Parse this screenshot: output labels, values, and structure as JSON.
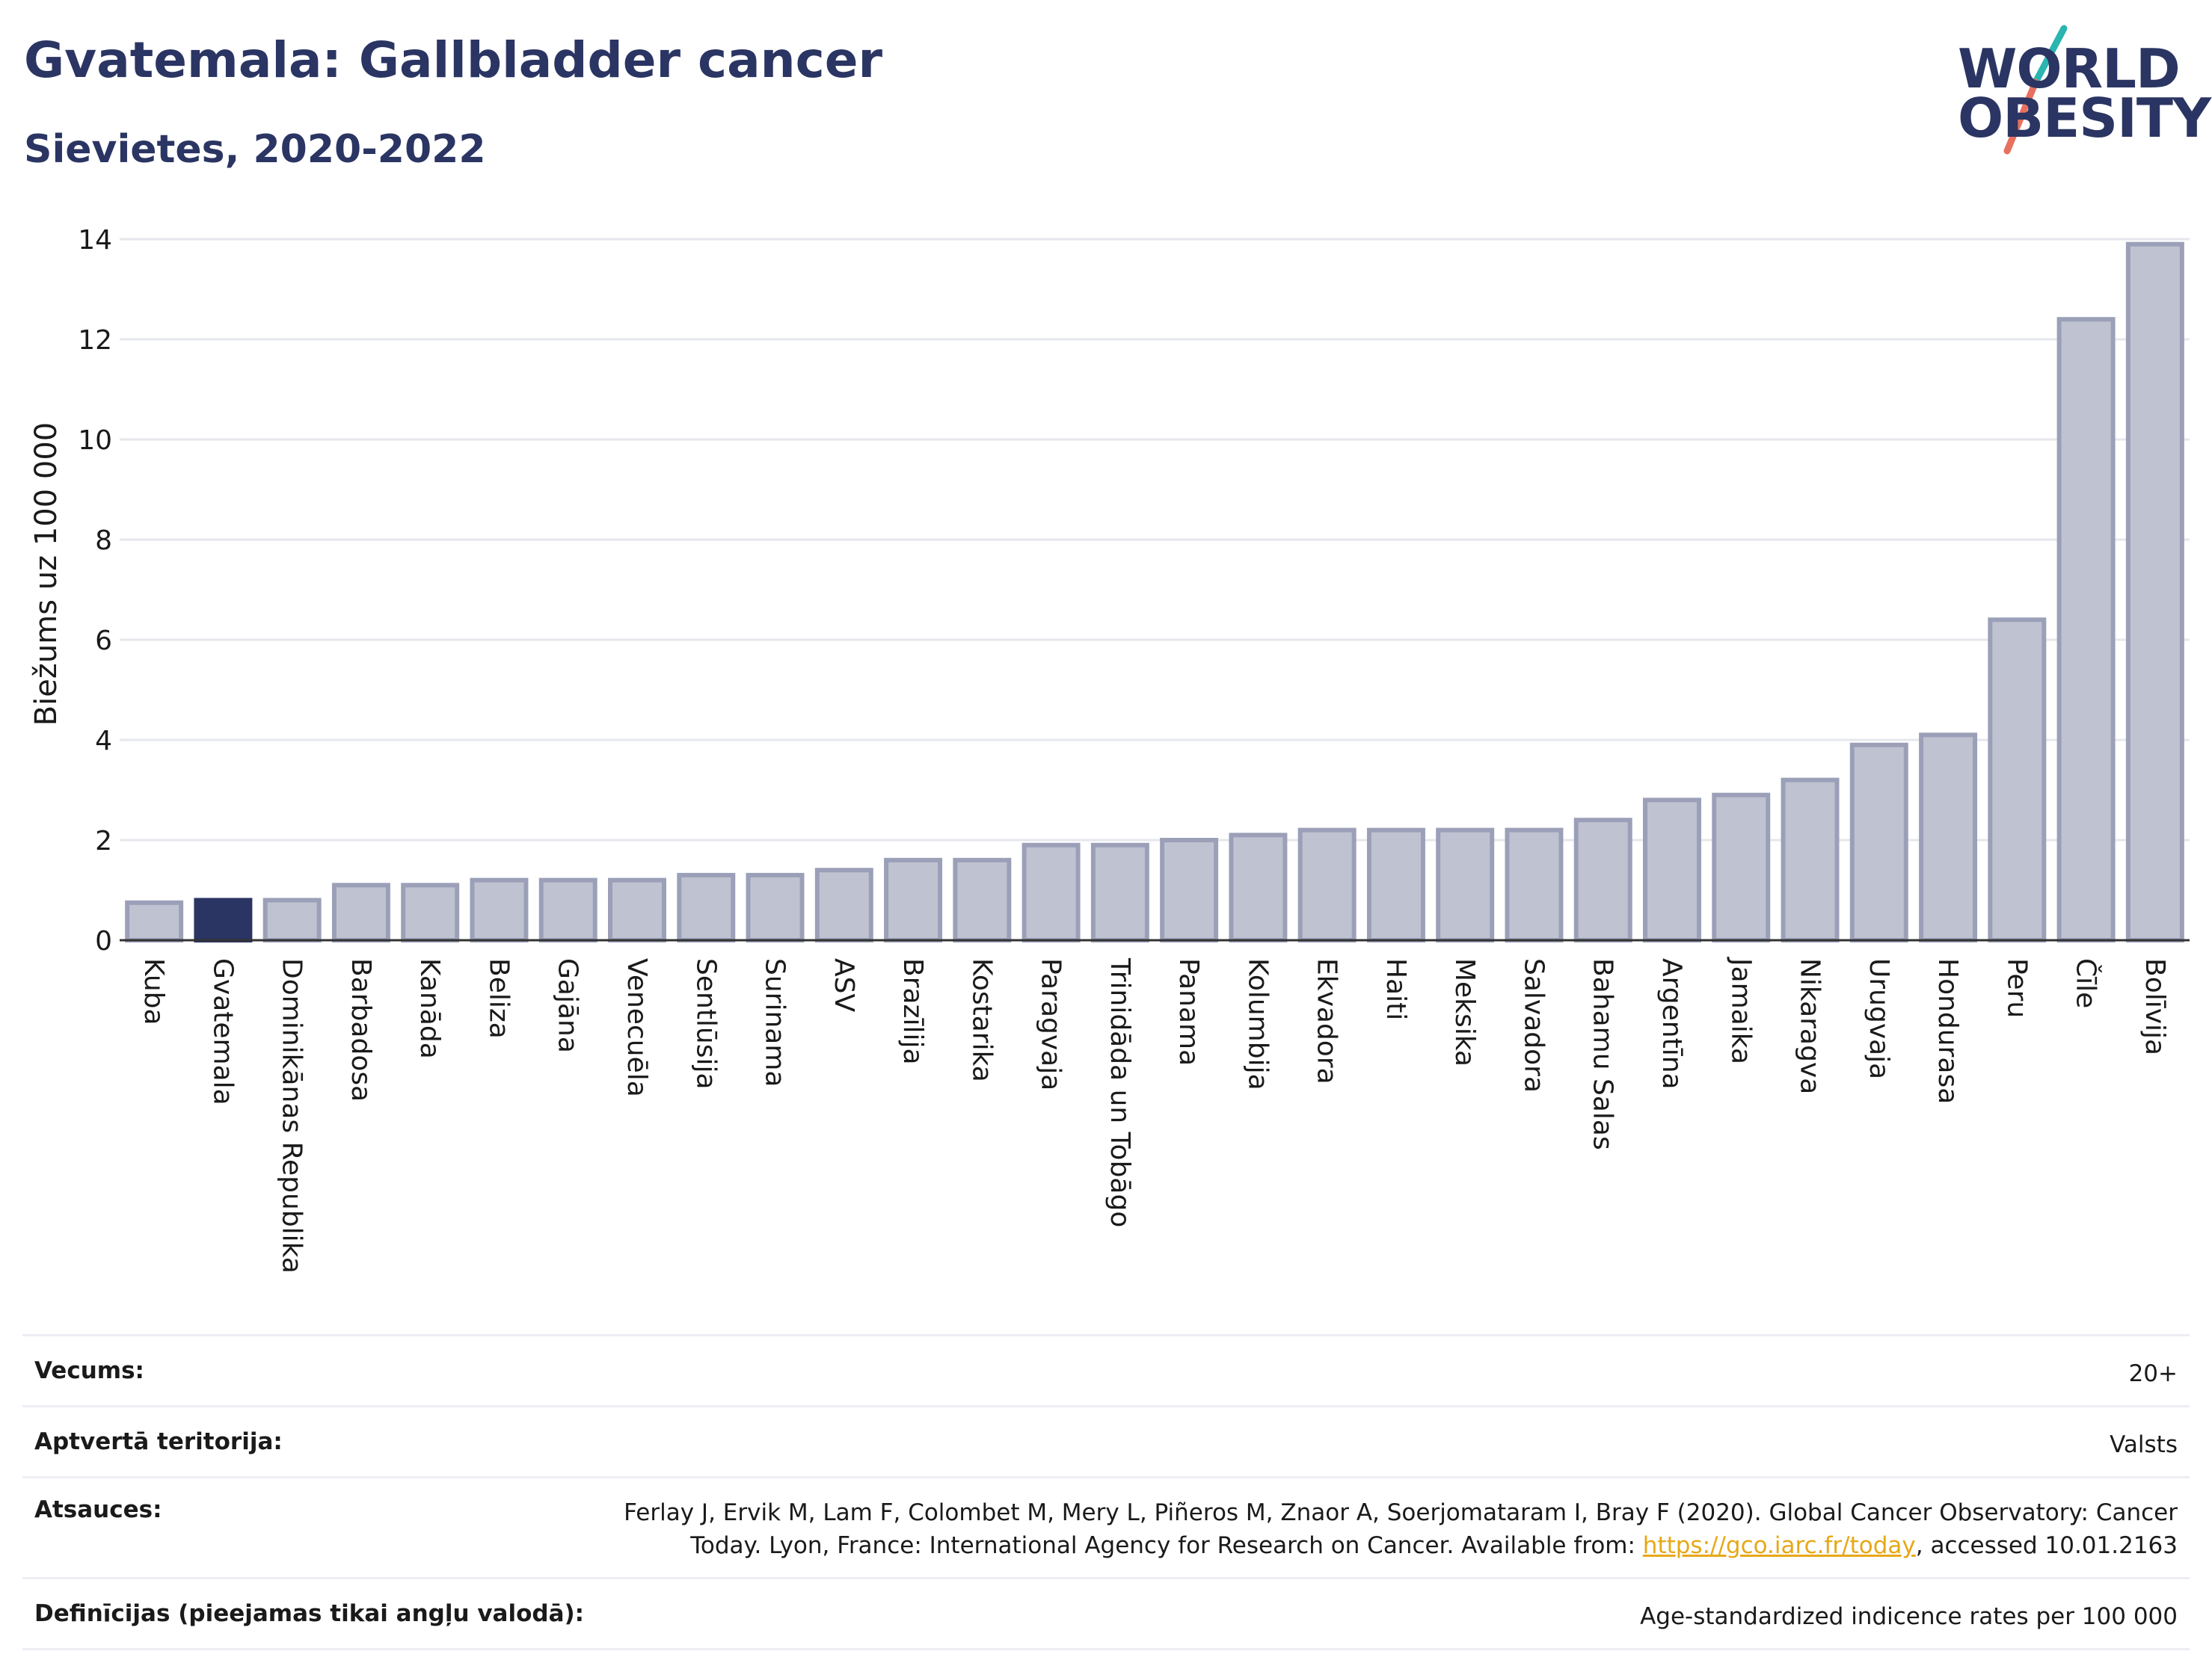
{
  "header": {
    "title": "Gvatemala: Gallbladder cancer",
    "subtitle": "Sievietes, 2020-2022"
  },
  "logo": {
    "line1": "WORLD",
    "line2": "OBESITY",
    "colors": {
      "text": "#2b3563",
      "accent_teal": "#2bb5b0",
      "accent_coral": "#e8705e"
    }
  },
  "chart_data": {
    "type": "bar",
    "ylabel": "Biežums uz 100 000",
    "ylim": [
      0,
      14
    ],
    "yticks": [
      0,
      2,
      4,
      6,
      8,
      10,
      12,
      14
    ],
    "grid": true,
    "highlight": "Gvatemala",
    "colors": {
      "bar": "#bfc3d1",
      "bar_edge": "#9ba0b8",
      "highlight": "#2b3563"
    },
    "categories": [
      "Kuba",
      "Gvatemala",
      "Dominikānas Republika",
      "Barbadosa",
      "Kanāda",
      "Beliza",
      "Gajāna",
      "Venecuēla",
      "Sentlūsija",
      "Surinama",
      "ASV",
      "Brazīlija",
      "Kostarika",
      "Paragvaja",
      "Trinidāda un Tobāgo",
      "Panama",
      "Kolumbija",
      "Ekvadora",
      "Haiti",
      "Meksika",
      "Salvadora",
      "Bahamu Salas",
      "Argentīna",
      "Jamaika",
      "Nikaragva",
      "Urugvaja",
      "Hondurasa",
      "Peru",
      "Čīle",
      "Bolīvija"
    ],
    "values": [
      0.75,
      0.8,
      0.8,
      1.1,
      1.1,
      1.2,
      1.2,
      1.2,
      1.3,
      1.3,
      1.4,
      1.6,
      1.6,
      1.9,
      1.9,
      2.0,
      2.1,
      2.2,
      2.2,
      2.2,
      2.2,
      2.4,
      2.8,
      2.9,
      3.2,
      3.9,
      4.1,
      6.4,
      12.4,
      13.9
    ]
  },
  "meta": {
    "age_label": "Vecums:",
    "age_value": "20+",
    "territory_label": "Aptvertā teritorija:",
    "territory_value": "Valsts",
    "refs_label": "Atsauces:",
    "refs_line1": "Ferlay J, Ervik M, Lam F, Colombet M, Mery L, Piñeros M, Znaor A, Soerjomataram I, Bray F (2020). Global Cancer Observatory: Cancer",
    "refs_line2_pre": "Today. Lyon, France: International Agency for Research on Cancer. Available from: ",
    "refs_link": "https://gco.iarc.fr/today",
    "refs_line2_post": ", accessed 10.01.2163",
    "defs_label": "Definīcijas (pieejamas tikai angļu valodā):",
    "defs_value": "Age-standardized indicence rates per 100 000"
  }
}
